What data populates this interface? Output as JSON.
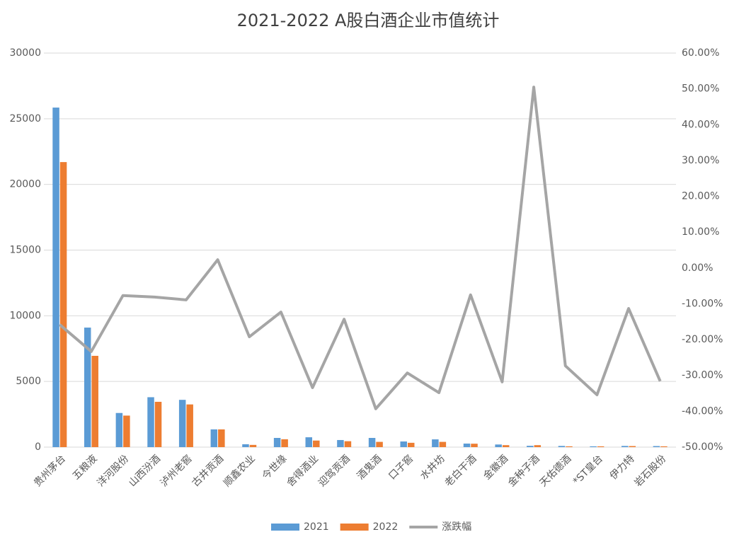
{
  "chart_data": {
    "type": "bar",
    "title": "2021-2022 A股白酒企业市值统计",
    "categories": [
      "贵州茅台",
      "五粮液",
      "洋河股份",
      "山西汾酒",
      "泸州老窖",
      "古井贡酒",
      "顺鑫农业",
      "今世缘",
      "舍得酒业",
      "迎驾贡酒",
      "酒鬼酒",
      "口子窖",
      "水井坊",
      "老白干酒",
      "金徽酒",
      "金种子酒",
      "天佑德酒",
      "*ST皇台",
      "伊力特",
      "岩石股份"
    ],
    "series": [
      {
        "name": "2021",
        "type": "bar",
        "color": "#5b9bd5",
        "values": [
          25850,
          9100,
          2600,
          3800,
          3600,
          1350,
          220,
          700,
          750,
          540,
          700,
          430,
          590,
          270,
          200,
          100,
          90,
          60,
          90,
          80
        ]
      },
      {
        "name": "2022",
        "type": "bar",
        "color": "#ed7d31",
        "values": [
          21700,
          6950,
          2400,
          3450,
          3250,
          1350,
          170,
          600,
          500,
          450,
          400,
          330,
          400,
          260,
          150,
          150,
          60,
          60,
          80,
          60
        ]
      },
      {
        "name": "涨跌幅",
        "type": "line",
        "axis": "y2",
        "color": "#a5a5a5",
        "values": [
          -15.8,
          -23.3,
          -7.7,
          -8.1,
          -8.9,
          2.3,
          -19.2,
          -12.3,
          -33.4,
          -14.3,
          -39.3,
          -29.3,
          -34.8,
          -7.5,
          -31.8,
          50.5,
          -27.3,
          -35.4,
          -11.3,
          -31.6
        ]
      }
    ],
    "ylim": [
      0,
      30000
    ],
    "yticks": [
      0,
      5000,
      10000,
      15000,
      20000,
      25000,
      30000
    ],
    "y2lim": [
      -50,
      60
    ],
    "y2ticks": [
      {
        "value": -50,
        "label": "-50.00%"
      },
      {
        "value": -40,
        "label": "-40.00%"
      },
      {
        "value": -30,
        "label": "-30.00%"
      },
      {
        "value": -20,
        "label": "-20.00%"
      },
      {
        "value": -10,
        "label": "-10.00%"
      },
      {
        "value": 0,
        "label": "0.00%"
      },
      {
        "value": 10,
        "label": "10.00%"
      },
      {
        "value": 20,
        "label": "20.00%"
      },
      {
        "value": 30,
        "label": "30.00%"
      },
      {
        "value": 40,
        "label": "40.00%"
      },
      {
        "value": 50,
        "label": "50.00%"
      },
      {
        "value": 60,
        "label": "60.00%"
      }
    ],
    "grid": true,
    "legend": "bottom"
  }
}
